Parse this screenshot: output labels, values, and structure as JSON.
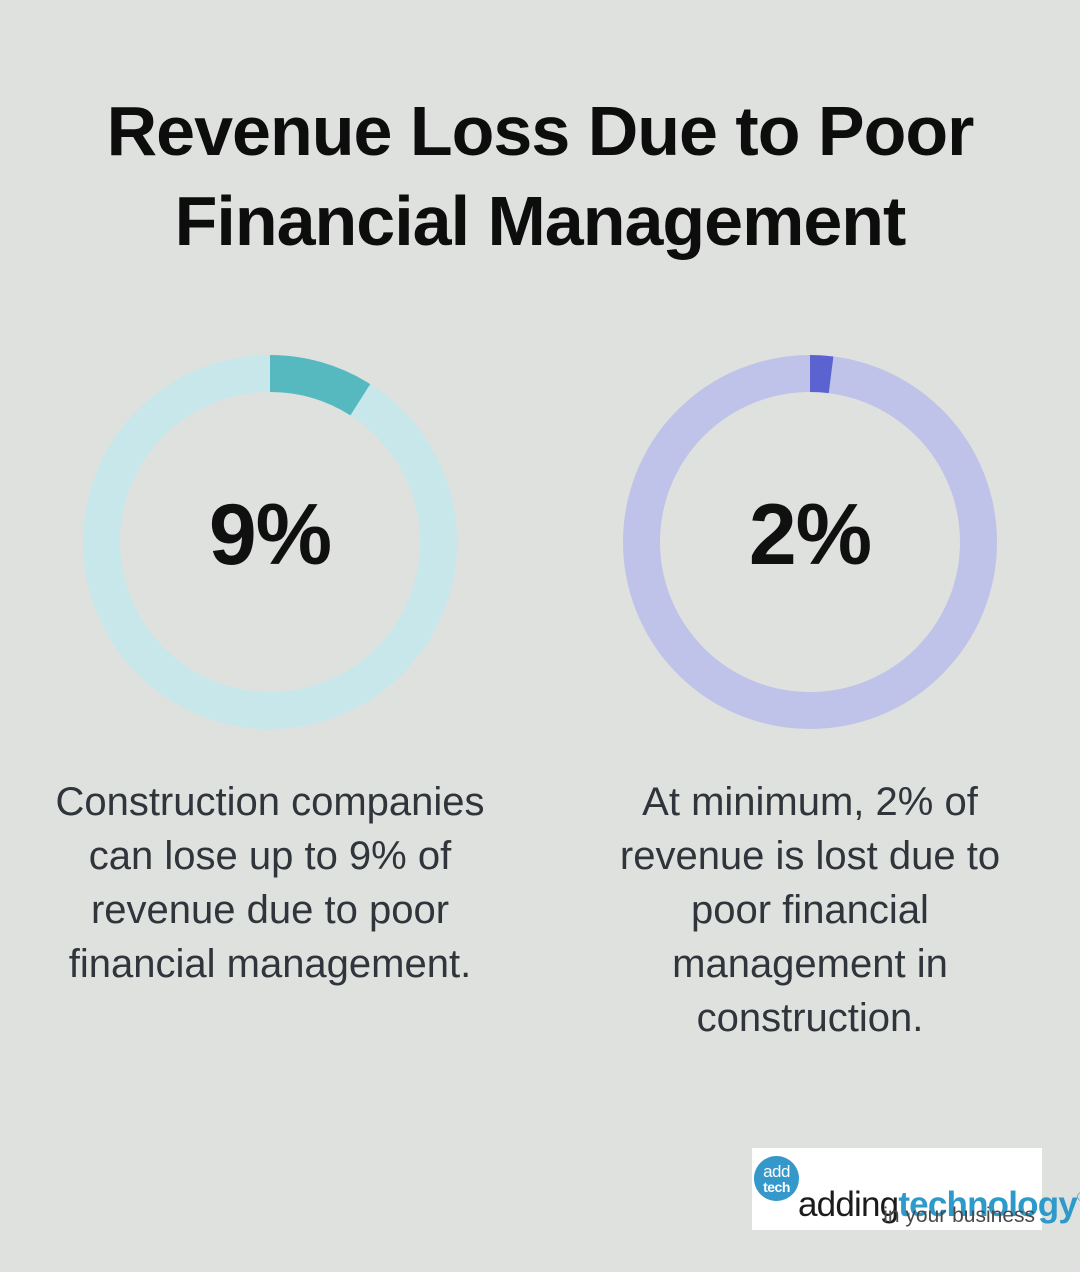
{
  "page": {
    "background": "#dfe1de"
  },
  "title": {
    "line1": "Revenue Loss Due to Poor",
    "line2": "Financial Management"
  },
  "chart_data": [
    {
      "type": "pie",
      "subtype": "donut",
      "center_label": "9%",
      "value_pct": 9,
      "remainder_pct": 91,
      "start_angle_deg": 0,
      "direction": "clockwise",
      "colors": {
        "segment": "#56b9c0",
        "track": "#c7e7ea"
      },
      "caption": "Construction companies\ncan lose up to 9% of\nrevenue due to poor\nfinancial management."
    },
    {
      "type": "pie",
      "subtype": "donut",
      "center_label": "2%",
      "value_pct": 2,
      "remainder_pct": 98,
      "start_angle_deg": 0,
      "direction": "clockwise",
      "colors": {
        "segment": "#5b63d0",
        "track": "#bfc2e9"
      },
      "caption": "At minimum, 2% of\nrevenue is lost due to\npoor financial\nmanagement in\nconstruction."
    }
  ],
  "logo": {
    "circle_line1": "add",
    "circle_line2": "tech",
    "brand_part1": "adding",
    "brand_part2": "technology",
    "registered_mark": "®",
    "tagline": "in your business",
    "colors": {
      "brand_blue": "#2d9aca",
      "circle_blue": "#3598cb"
    }
  }
}
